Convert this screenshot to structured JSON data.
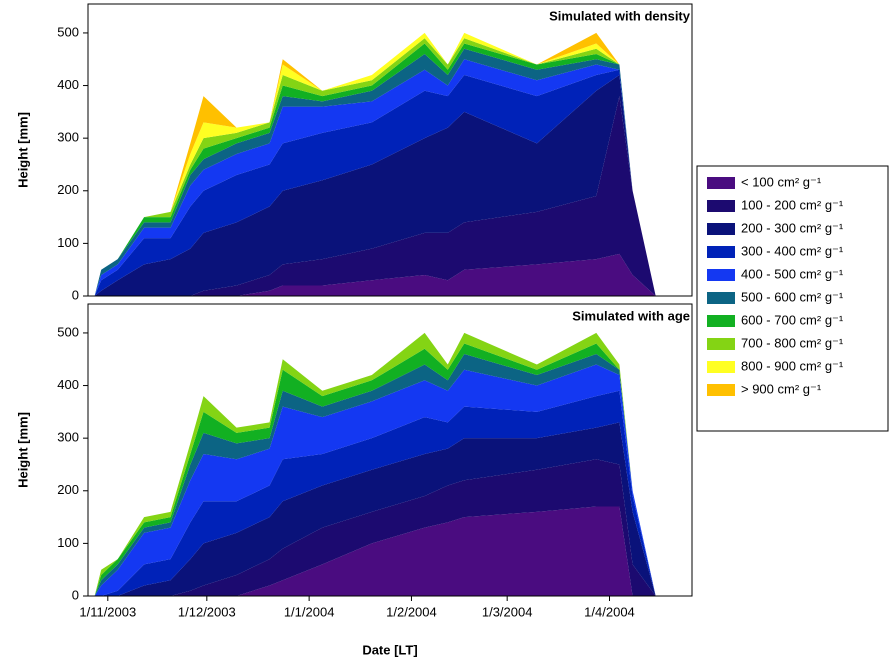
{
  "chart_data": [
    {
      "type": "stacked-area",
      "title": "Simulated with density",
      "y_label": "Height [mm]",
      "x": [
        "2003-10-28",
        "2003-10-30",
        "2003-11-04",
        "2003-11-12",
        "2003-11-20",
        "2003-11-26",
        "2003-11-30",
        "2003-12-10",
        "2003-12-20",
        "2003-12-24",
        "2004-01-05",
        "2004-01-20",
        "2004-02-05",
        "2004-02-12",
        "2004-02-17",
        "2004-03-10",
        "2004-03-28",
        "2004-04-04",
        "2004-04-08",
        "2004-04-15"
      ],
      "xlim": [
        "2003-10-26",
        "2004-04-26"
      ],
      "ylim": [
        0,
        555
      ],
      "yticks": [
        0,
        100,
        200,
        300,
        400,
        500
      ],
      "series": [
        {
          "name": "< 100 cm² g⁻¹",
          "color": "#4a0c80",
          "values": [
            0,
            0,
            0,
            0,
            0,
            0,
            0,
            0,
            10,
            20,
            20,
            30,
            40,
            30,
            50,
            60,
            70,
            80,
            40,
            0
          ]
        },
        {
          "name": "100 - 200 cm² g⁻¹",
          "color": "#1c0a70",
          "values": [
            0,
            0,
            0,
            0,
            0,
            0,
            10,
            20,
            30,
            40,
            50,
            60,
            80,
            90,
            90,
            100,
            120,
            300,
            160,
            0
          ]
        },
        {
          "name": "200 - 300 cm² g⁻¹",
          "color": "#0a127a",
          "values": [
            0,
            10,
            30,
            60,
            70,
            90,
            110,
            120,
            130,
            140,
            150,
            160,
            180,
            200,
            210,
            130,
            200,
            40,
            0,
            0
          ]
        },
        {
          "name": "300 - 400 cm² g⁻¹",
          "color": "#0022b8",
          "values": [
            0,
            20,
            20,
            50,
            40,
            80,
            80,
            90,
            80,
            90,
            90,
            80,
            90,
            60,
            70,
            90,
            30,
            10,
            0,
            0
          ]
        },
        {
          "name": "400 - 500 cm² g⁻¹",
          "color": "#1438f2",
          "values": [
            0,
            10,
            10,
            20,
            20,
            40,
            40,
            40,
            40,
            70,
            50,
            40,
            40,
            20,
            30,
            30,
            20,
            0,
            0,
            0
          ]
        },
        {
          "name": "500 - 600 cm² g⁻¹",
          "color": "#0c6484",
          "values": [
            0,
            10,
            10,
            10,
            10,
            20,
            20,
            20,
            20,
            20,
            10,
            20,
            30,
            20,
            20,
            20,
            10,
            10,
            0,
            0
          ]
        },
        {
          "name": "600 - 700 cm² g⁻¹",
          "color": "#12b022",
          "values": [
            0,
            0,
            0,
            10,
            10,
            10,
            20,
            10,
            10,
            20,
            10,
            10,
            20,
            10,
            10,
            10,
            10,
            0,
            0,
            0
          ]
        },
        {
          "name": "700 - 800 cm² g⁻¹",
          "color": "#84d414",
          "values": [
            0,
            0,
            0,
            0,
            10,
            10,
            20,
            10,
            10,
            20,
            10,
            10,
            10,
            10,
            10,
            0,
            10,
            0,
            0,
            0
          ]
        },
        {
          "name": "800 - 900 cm² g⁻¹",
          "color": "#ffff22",
          "values": [
            0,
            0,
            0,
            0,
            0,
            20,
            30,
            10,
            0,
            20,
            0,
            10,
            10,
            0,
            10,
            0,
            10,
            0,
            0,
            0
          ]
        },
        {
          "name": "> 900 cm² g⁻¹",
          "color": "#ffc000",
          "values": [
            0,
            0,
            0,
            0,
            0,
            20,
            50,
            0,
            0,
            10,
            0,
            0,
            0,
            0,
            0,
            0,
            20,
            0,
            0,
            0
          ]
        }
      ]
    },
    {
      "type": "stacked-area",
      "title": "Simulated with age",
      "y_label": "Height [mm]",
      "x_label": "Date [LT]",
      "x": [
        "2003-10-28",
        "2003-10-30",
        "2003-11-04",
        "2003-11-12",
        "2003-11-20",
        "2003-11-26",
        "2003-11-30",
        "2003-12-10",
        "2003-12-20",
        "2003-12-24",
        "2004-01-05",
        "2004-01-20",
        "2004-02-05",
        "2004-02-12",
        "2004-02-17",
        "2004-03-10",
        "2004-03-28",
        "2004-04-04",
        "2004-04-08",
        "2004-04-15"
      ],
      "xlim": [
        "2003-10-26",
        "2004-04-26"
      ],
      "ylim": [
        0,
        555
      ],
      "yticks": [
        0,
        100,
        200,
        300,
        400,
        500
      ],
      "xticks": [
        {
          "value": "2003-11-01",
          "label": "1/11/2003"
        },
        {
          "value": "2003-12-01",
          "label": "1/12/2003"
        },
        {
          "value": "2004-01-01",
          "label": "1/1/2004"
        },
        {
          "value": "2004-02-01",
          "label": "1/2/2004"
        },
        {
          "value": "2004-03-01",
          "label": "1/3/2004"
        },
        {
          "value": "2004-04-01",
          "label": "1/4/2004"
        }
      ],
      "series": [
        {
          "name": "< 100 cm² g⁻¹",
          "color": "#4a0c80",
          "values": [
            0,
            0,
            0,
            0,
            0,
            0,
            0,
            0,
            20,
            30,
            60,
            100,
            130,
            140,
            150,
            160,
            170,
            170,
            0,
            0
          ]
        },
        {
          "name": "100 - 200 cm² g⁻¹",
          "color": "#1c0a70",
          "values": [
            0,
            0,
            0,
            0,
            0,
            10,
            20,
            40,
            50,
            60,
            70,
            60,
            60,
            70,
            70,
            80,
            90,
            80,
            60,
            0
          ]
        },
        {
          "name": "200 - 300 cm² g⁻¹",
          "color": "#0a127a",
          "values": [
            0,
            0,
            0,
            20,
            30,
            60,
            80,
            80,
            80,
            90,
            80,
            80,
            80,
            70,
            80,
            60,
            60,
            80,
            100,
            0
          ]
        },
        {
          "name": "300 - 400 cm² g⁻¹",
          "color": "#0022b8",
          "values": [
            0,
            0,
            10,
            40,
            40,
            70,
            80,
            60,
            60,
            80,
            60,
            60,
            70,
            50,
            60,
            50,
            60,
            60,
            30,
            0
          ]
        },
        {
          "name": "400 - 500 cm² g⁻¹",
          "color": "#1438f2",
          "values": [
            0,
            20,
            40,
            60,
            60,
            80,
            90,
            80,
            70,
            100,
            70,
            70,
            70,
            60,
            70,
            50,
            60,
            30,
            10,
            0
          ]
        },
        {
          "name": "500 - 600 cm² g⁻¹",
          "color": "#0c6484",
          "values": [
            0,
            10,
            10,
            10,
            10,
            30,
            40,
            30,
            20,
            30,
            20,
            20,
            30,
            20,
            30,
            20,
            20,
            10,
            0,
            0
          ]
        },
        {
          "name": "600 - 700 cm² g⁻¹",
          "color": "#12b022",
          "values": [
            0,
            10,
            10,
            10,
            10,
            20,
            40,
            20,
            20,
            40,
            20,
            20,
            30,
            20,
            20,
            10,
            20,
            0,
            0,
            0
          ]
        },
        {
          "name": "700 - 800 cm² g⁻¹",
          "color": "#84d414",
          "values": [
            0,
            10,
            0,
            10,
            10,
            20,
            30,
            10,
            10,
            20,
            10,
            10,
            30,
            10,
            20,
            10,
            20,
            10,
            0,
            0
          ]
        },
        {
          "name": "800 - 900 cm² g⁻¹",
          "color": "#ffff22",
          "values": [
            0,
            0,
            0,
            0,
            0,
            0,
            0,
            0,
            0,
            0,
            0,
            0,
            0,
            0,
            0,
            0,
            0,
            0,
            0,
            0
          ]
        },
        {
          "name": "> 900 cm² g⁻¹",
          "color": "#ffc000",
          "values": [
            0,
            0,
            0,
            0,
            0,
            0,
            0,
            0,
            0,
            0,
            0,
            0,
            0,
            0,
            0,
            0,
            0,
            0,
            0,
            0
          ]
        }
      ]
    }
  ]
}
